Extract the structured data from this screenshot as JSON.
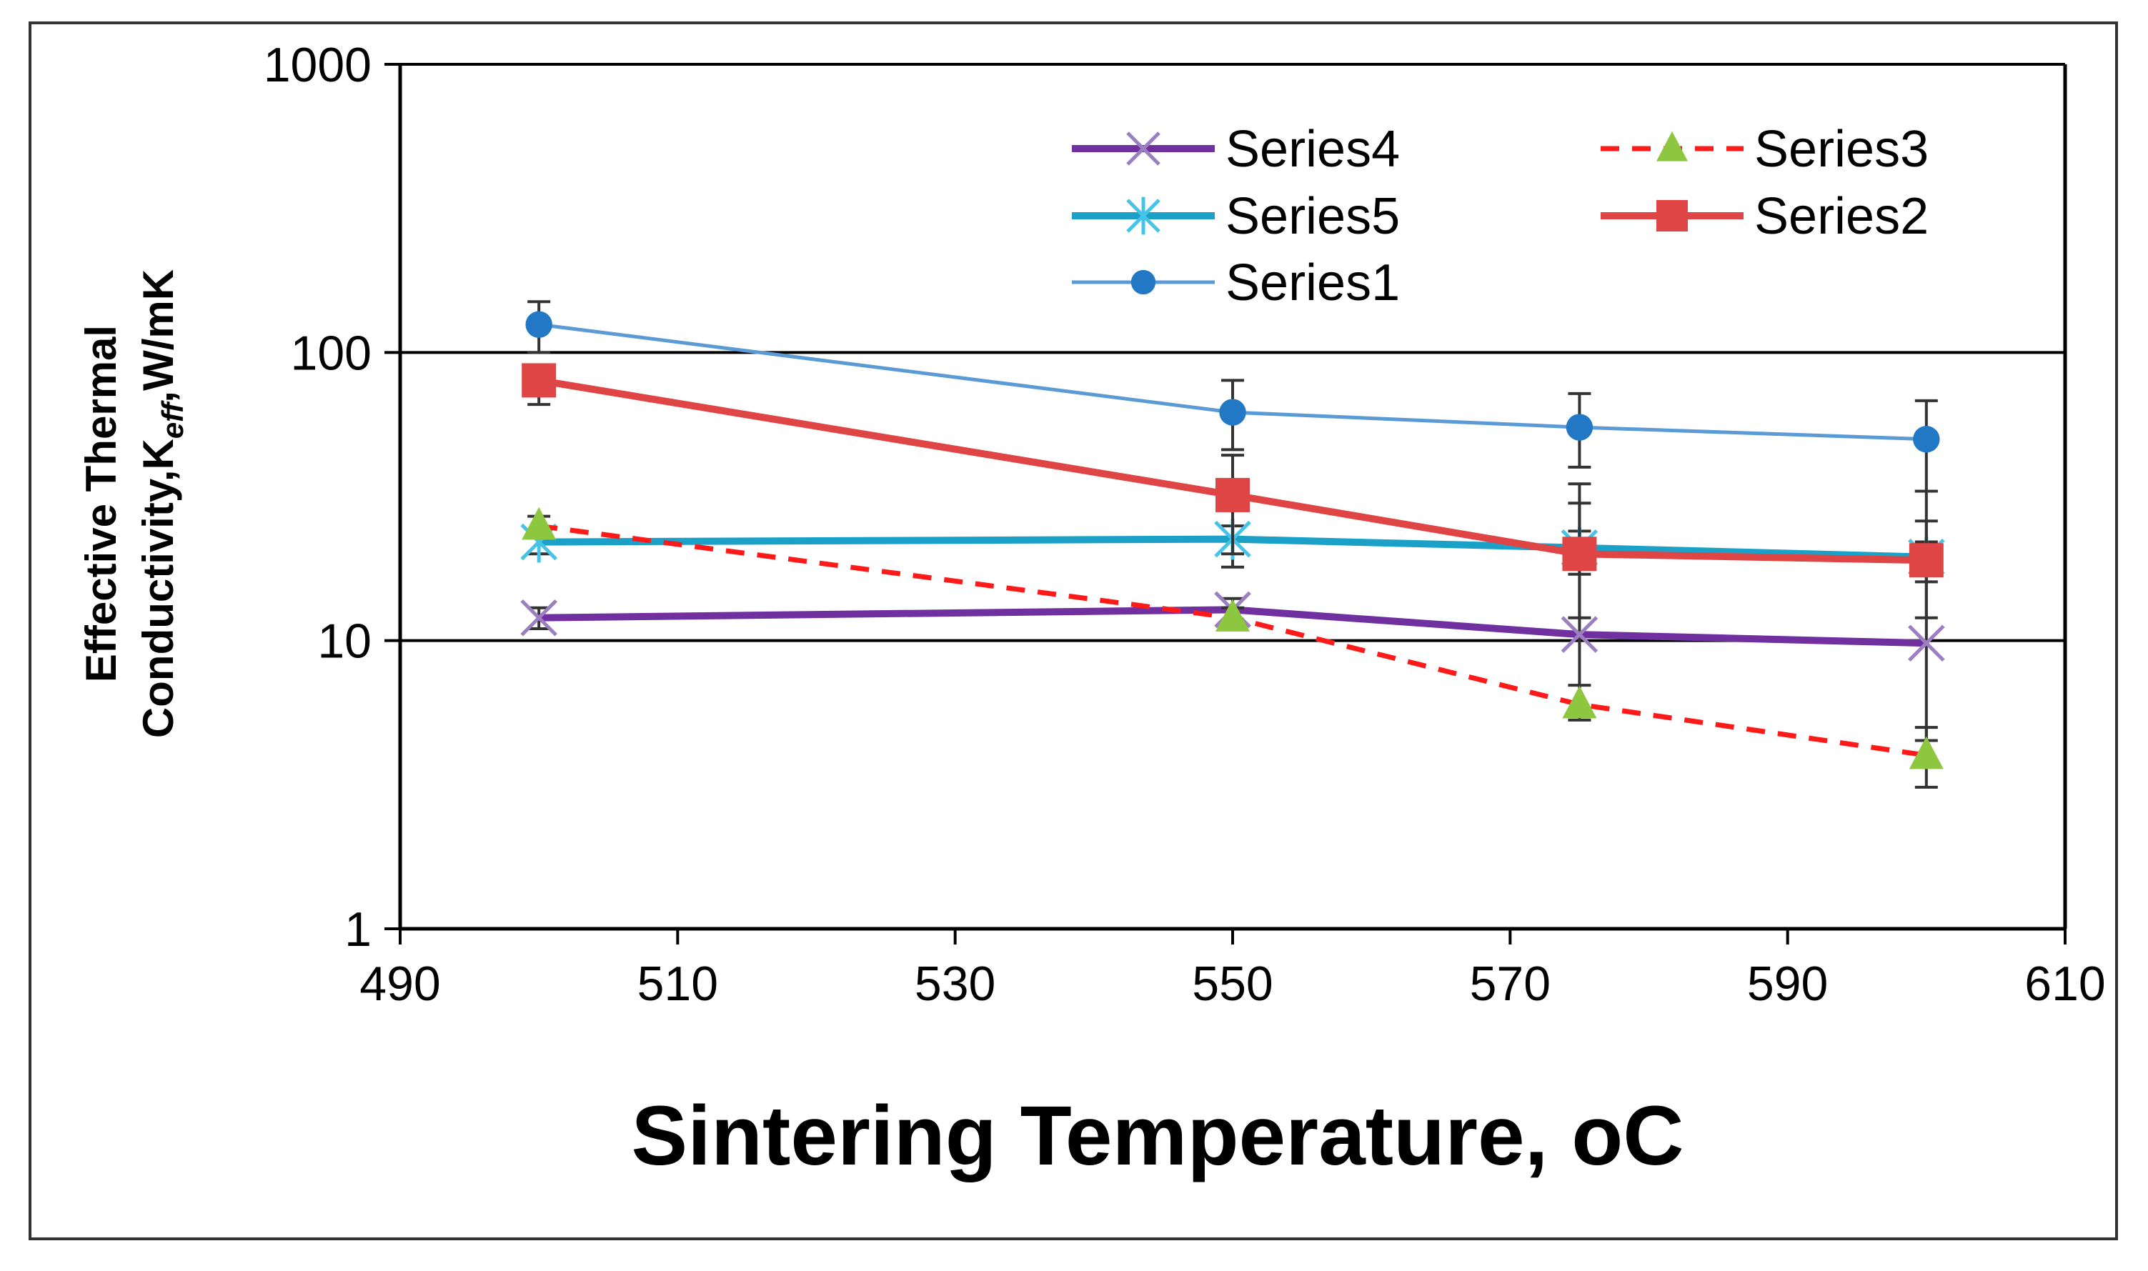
{
  "chart_data": {
    "type": "line",
    "title": "",
    "xlabel": "Sintering Temperature, ",
    "xlabel_unit": "oC",
    "ylabel_line1": "Effective Thermal",
    "ylabel_line2": "Conductivity,K",
    "ylabel_sub": "eff",
    "ylabel_unit": ",W/mK",
    "xlim": [
      490,
      610
    ],
    "ylim": [
      1,
      1000
    ],
    "yscale": "log",
    "x_ticks": [
      "490",
      "510",
      "530",
      "550",
      "570",
      "590",
      "610"
    ],
    "y_ticks": [
      "1",
      "10",
      "100",
      "1000"
    ],
    "x": [
      500,
      550,
      575,
      600
    ],
    "series": [
      {
        "name": "Series1",
        "color": "#5b9bd5",
        "marker": "circle",
        "line": "thin",
        "values": [
          125,
          62,
          55,
          50
        ],
        "err_hi": [
          150,
          80,
          72,
          68
        ],
        "err_lo": [
          100,
          46,
          40,
          33
        ]
      },
      {
        "name": "Series2",
        "color": "#e04545",
        "marker": "square",
        "line": "thick",
        "values": [
          80,
          32,
          20,
          19
        ],
        "err_hi": [
          90,
          44,
          30,
          26
        ],
        "err_lo": [
          66,
          20,
          12,
          12
        ]
      },
      {
        "name": "Series3",
        "color": "#ff1a1a",
        "marker": "triangle",
        "line": "dashed",
        "values": [
          25,
          12,
          6,
          4
        ],
        "err_hi": [
          27,
          13,
          7,
          5
        ],
        "err_lo": [
          23,
          11,
          5.3,
          3.1
        ]
      },
      {
        "name": "Series4",
        "color": "#7030a0",
        "marker": "x",
        "line": "thick",
        "values": [
          12,
          12.8,
          10.5,
          9.8
        ],
        "err_hi": [
          13,
          14,
          35,
          33
        ],
        "err_lo": [
          11,
          11.5,
          5.5,
          4.5
        ]
      },
      {
        "name": "Series5",
        "color": "#1ba1c8",
        "marker": "star",
        "line": "thick",
        "values": [
          22,
          22.5,
          21,
          19.5
        ],
        "err_hi": [
          24,
          25,
          24,
          22
        ],
        "err_lo": [
          20,
          18,
          17,
          16
        ]
      }
    ],
    "legend": [
      "Series4",
      "Series3",
      "Series5",
      "Series2",
      "Series1"
    ],
    "legend_position": "top-right",
    "marker_colors": {
      "triangle": "#8dc63f",
      "square": "#e04545",
      "circle": "#2378c6",
      "x": "#9c7fc0",
      "star": "#46c4e8"
    }
  }
}
